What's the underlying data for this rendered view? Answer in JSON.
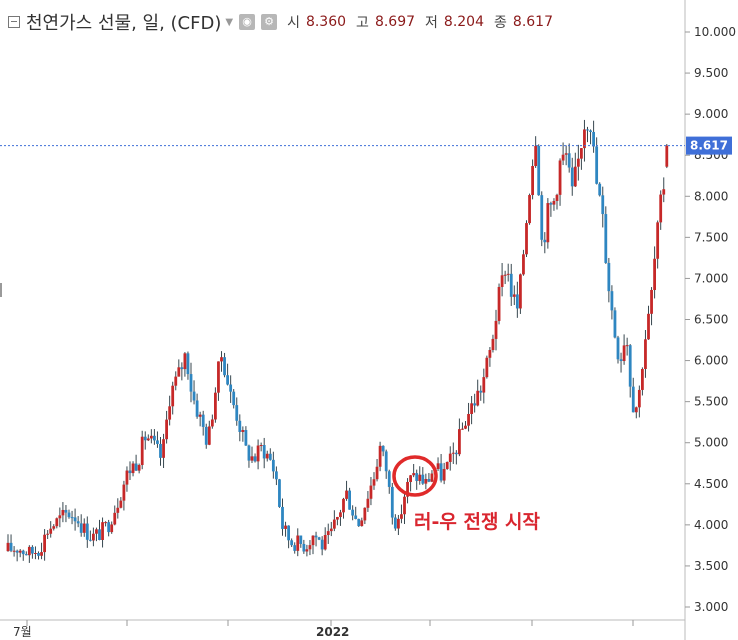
{
  "header": {
    "title": "천연가스 선물, 일, (CFD)",
    "open_label": "시",
    "open": "8.360",
    "high_label": "고",
    "high": "8.697",
    "low_label": "저",
    "low": "8.204",
    "close_label": "종",
    "close": "8.617"
  },
  "chart_data": {
    "type": "candlestick",
    "title": "천연가스 선물, 일, (CFD)",
    "ylim": [
      2.95,
      10.15
    ],
    "yticks": [
      "10.000",
      "9.500",
      "9.000",
      "8.500",
      "8.000",
      "7.500",
      "7.000",
      "6.500",
      "6.000",
      "5.500",
      "5.000",
      "4.500",
      "4.000",
      "3.500",
      "3.000"
    ],
    "xticks": [
      "7월",
      "2022"
    ],
    "last_price": "8.617",
    "annotation": "러-우 전쟁 시작",
    "colors": {
      "up": "#c62828",
      "down": "#2e86c1",
      "wick": "#37474f",
      "price_line": "#3f6fd8",
      "annotation": "#d9262f"
    },
    "close_path": [
      [
        0,
        3.25
      ],
      [
        8,
        3.7
      ],
      [
        18,
        3.72
      ],
      [
        30,
        3.65
      ],
      [
        40,
        3.72
      ],
      [
        48,
        3.95
      ],
      [
        58,
        4.05
      ],
      [
        68,
        4.15
      ],
      [
        76,
        4.1
      ],
      [
        84,
        3.95
      ],
      [
        92,
        3.85
      ],
      [
        100,
        3.9
      ],
      [
        108,
        4.0
      ],
      [
        118,
        4.3
      ],
      [
        128,
        4.65
      ],
      [
        138,
        4.8
      ],
      [
        146,
        5.1
      ],
      [
        154,
        4.95
      ],
      [
        162,
        4.8
      ],
      [
        170,
        5.6
      ],
      [
        178,
        5.8
      ],
      [
        186,
        6.1
      ],
      [
        192,
        5.6
      ],
      [
        200,
        5.3
      ],
      [
        208,
        5.0
      ],
      [
        216,
        5.7
      ],
      [
        222,
        6.1
      ],
      [
        230,
        5.6
      ],
      [
        238,
        5.3
      ],
      [
        246,
        4.9
      ],
      [
        254,
        4.8
      ],
      [
        262,
        4.95
      ],
      [
        270,
        4.8
      ],
      [
        276,
        4.6
      ],
      [
        282,
        4.0
      ],
      [
        290,
        3.8
      ],
      [
        298,
        3.78
      ],
      [
        306,
        3.75
      ],
      [
        314,
        3.9
      ],
      [
        322,
        3.75
      ],
      [
        330,
        3.85
      ],
      [
        338,
        4.1
      ],
      [
        346,
        4.4
      ],
      [
        352,
        4.2
      ],
      [
        358,
        4.0
      ],
      [
        366,
        4.3
      ],
      [
        374,
        4.6
      ],
      [
        380,
        4.95
      ],
      [
        386,
        4.7
      ],
      [
        392,
        4.2
      ],
      [
        398,
        3.95
      ],
      [
        404,
        4.35
      ],
      [
        410,
        4.55
      ],
      [
        418,
        4.6
      ],
      [
        426,
        4.5
      ],
      [
        434,
        4.7
      ],
      [
        442,
        4.6
      ],
      [
        450,
        4.75
      ],
      [
        458,
        5.0
      ],
      [
        466,
        5.3
      ],
      [
        474,
        5.5
      ],
      [
        482,
        5.7
      ],
      [
        490,
        6.1
      ],
      [
        498,
        6.7
      ],
      [
        506,
        7.2
      ],
      [
        512,
        6.8
      ],
      [
        518,
        6.6
      ],
      [
        524,
        7.4
      ],
      [
        530,
        8.2
      ],
      [
        536,
        8.8
      ],
      [
        542,
        7.4
      ],
      [
        548,
        7.8
      ],
      [
        554,
        7.95
      ],
      [
        560,
        8.4
      ],
      [
        566,
        8.5
      ],
      [
        572,
        8.0
      ],
      [
        578,
        8.4
      ],
      [
        584,
        8.9
      ],
      [
        590,
        9.0
      ],
      [
        596,
        8.2
      ],
      [
        602,
        7.8
      ],
      [
        608,
        7.0
      ],
      [
        614,
        6.4
      ],
      [
        620,
        6.0
      ],
      [
        626,
        6.4
      ],
      [
        632,
        5.5
      ],
      [
        638,
        5.45
      ],
      [
        644,
        6.2
      ],
      [
        650,
        6.6
      ],
      [
        656,
        7.4
      ],
      [
        662,
        8.0
      ],
      [
        669,
        8.617
      ]
    ]
  }
}
